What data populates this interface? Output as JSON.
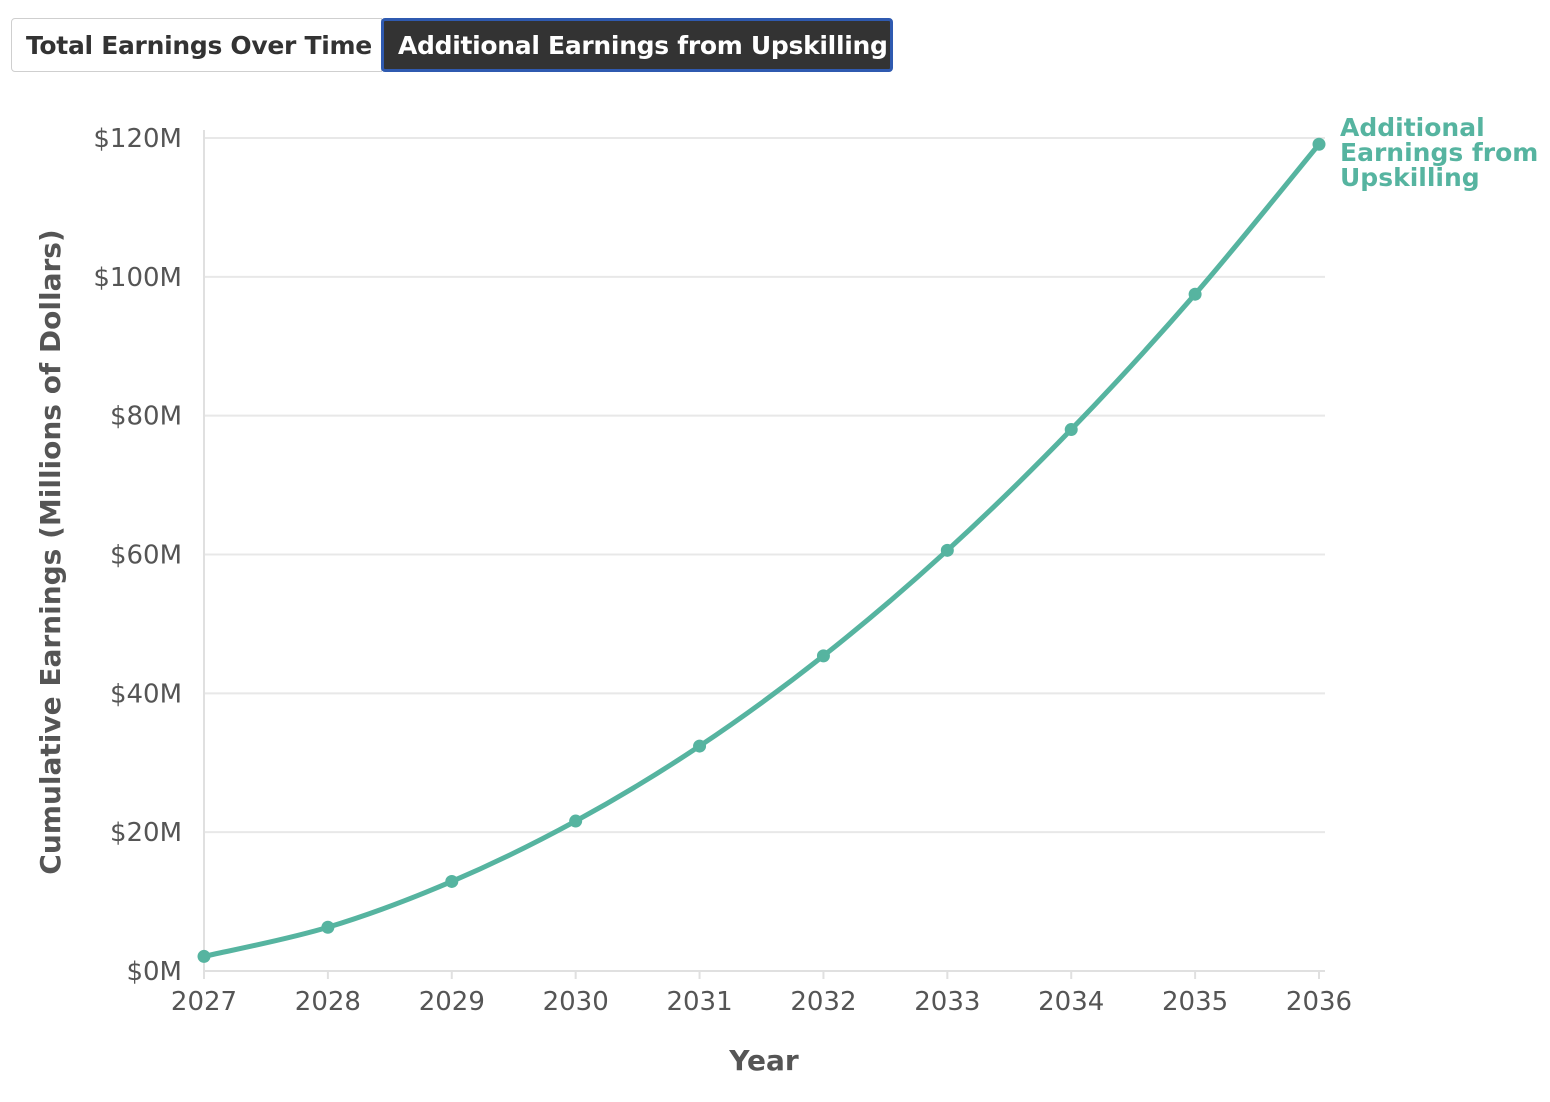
{
  "tabs": [
    {
      "label": "Total Earnings Over Time",
      "active": false
    },
    {
      "label": "Additional Earnings from Upskilling",
      "active": true
    }
  ],
  "colors": {
    "series": "#56b4a0",
    "grid": "#e8e8e8",
    "axis": "#e0e0e0",
    "tab_active_bg": "#333333",
    "tab_active_border": "#2f5ab0"
  },
  "chart_data": {
    "type": "line",
    "title": "",
    "xlabel": "Year",
    "ylabel": "Cumulative Earnings (Millions of Dollars)",
    "x": [
      2027,
      2028,
      2029,
      2030,
      2031,
      2032,
      2033,
      2034,
      2035,
      2036
    ],
    "xticks": [
      "2027",
      "2028",
      "2029",
      "2030",
      "2031",
      "2032",
      "2033",
      "2034",
      "2035",
      "2036"
    ],
    "ylim": [
      0,
      120
    ],
    "yticks": [
      0,
      20,
      40,
      60,
      80,
      100,
      120
    ],
    "ytick_labels": [
      "$0M",
      "$20M",
      "$40M",
      "$60M",
      "$80M",
      "$100M",
      "$120M"
    ],
    "grid": true,
    "series": [
      {
        "name": "Additional Earnings from Upskilling",
        "name_lines": [
          "Additional",
          "Earnings from",
          "Upskilling"
        ],
        "values": [
          2.1,
          6.3,
          12.9,
          21.6,
          32.4,
          45.4,
          60.6,
          78.0,
          97.5,
          119.1
        ]
      }
    ]
  }
}
